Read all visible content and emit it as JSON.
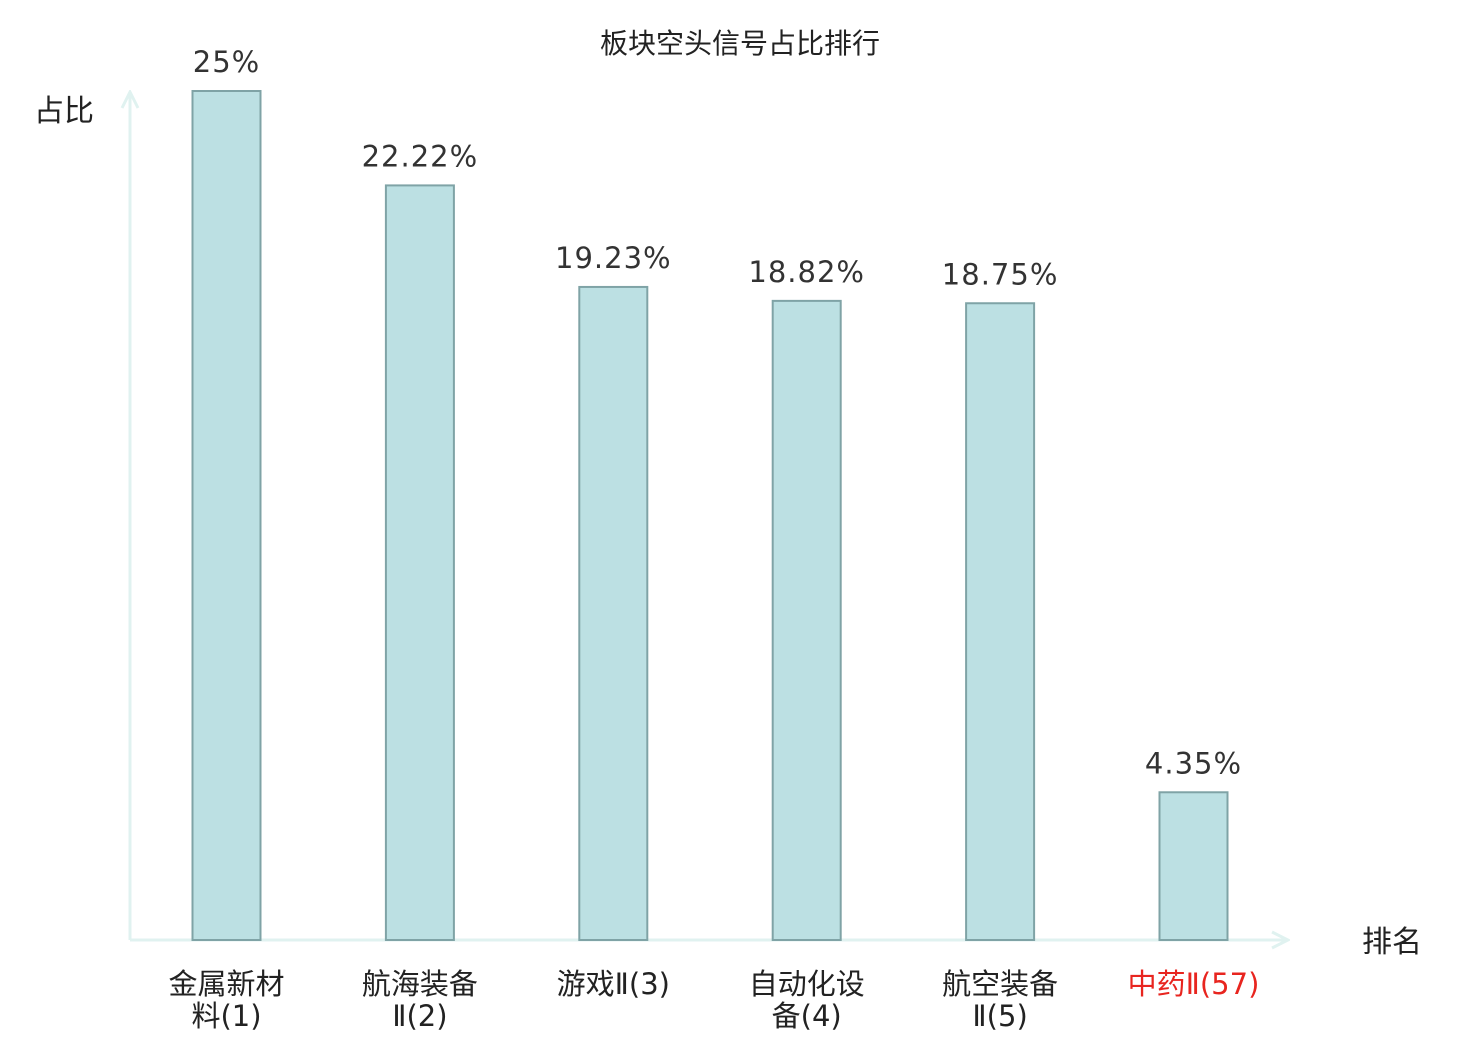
{
  "chart_data": {
    "type": "bar",
    "title": "板块空头信号占比排行",
    "ylabel": "占比",
    "xlabel": "排名",
    "categories": [
      {
        "name": "金属新材料",
        "rank": "(1)",
        "lines": [
          "金属新材",
          "料(1)"
        ],
        "highlight": false
      },
      {
        "name": "航海装备Ⅱ",
        "rank": "(2)",
        "lines": [
          "航海装备",
          "Ⅱ(2)"
        ],
        "highlight": false
      },
      {
        "name": "游戏Ⅱ",
        "rank": "(3)",
        "lines": [
          "游戏Ⅱ(3)"
        ],
        "highlight": false
      },
      {
        "name": "自动化设备",
        "rank": "(4)",
        "lines": [
          "自动化设",
          "备(4)"
        ],
        "highlight": false
      },
      {
        "name": "航空装备Ⅱ",
        "rank": "(5)",
        "lines": [
          "航空装备",
          "Ⅱ(5)"
        ],
        "highlight": false
      },
      {
        "name": "中药Ⅱ",
        "rank": "(57)",
        "lines": [
          "中药Ⅱ(57)"
        ],
        "highlight": true
      }
    ],
    "values": [
      25,
      22.22,
      19.23,
      18.82,
      18.75,
      4.35
    ],
    "value_labels": [
      "25%",
      "22.22%",
      "19.23%",
      "18.82%",
      "18.75%",
      "4.35%"
    ],
    "ylim": [
      0,
      25
    ],
    "grid": false,
    "legend": "none",
    "colors": {
      "bar_fill": "#bce0e3",
      "bar_stroke": "#7fa3a6",
      "axis": "#e0f2f0",
      "text": "#222222",
      "value_text": "#333333",
      "highlight_text": "#e8251f"
    }
  }
}
